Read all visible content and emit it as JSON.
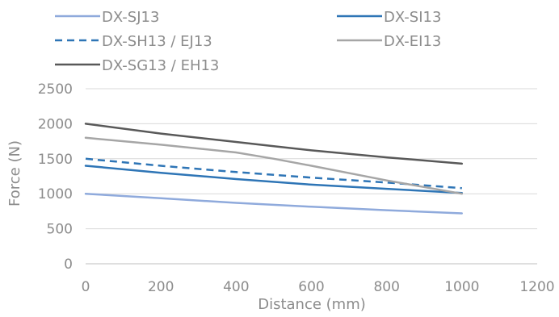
{
  "chart_data": {
    "type": "line",
    "title": "",
    "xlabel": "Distance (mm)",
    "ylabel": "Force (N)",
    "xlim": [
      0,
      1200
    ],
    "ylim": [
      0,
      2500
    ],
    "x_ticks": [
      0,
      200,
      400,
      600,
      800,
      1000,
      1200
    ],
    "y_ticks": [
      0,
      500,
      1000,
      1500,
      2000,
      2500
    ],
    "grid": "horizontal",
    "legend_position": "top",
    "series": [
      {
        "name": "DX-SJ13",
        "color": "#8faadc",
        "dashed": false,
        "x": [
          0,
          200,
          400,
          600,
          800,
          1000
        ],
        "y": [
          1000,
          935,
          870,
          815,
          765,
          720
        ]
      },
      {
        "name": "DX-SI13",
        "color": "#2e75b6",
        "dashed": false,
        "x": [
          0,
          200,
          400,
          600,
          800,
          1000
        ],
        "y": [
          1400,
          1300,
          1210,
          1130,
          1070,
          1010
        ]
      },
      {
        "name": "DX-SH13 / EJ13",
        "color": "#2e75b6",
        "dashed": true,
        "x": [
          0,
          200,
          400,
          600,
          800,
          1000
        ],
        "y": [
          1500,
          1400,
          1310,
          1230,
          1160,
          1080
        ]
      },
      {
        "name": "DX-EI13",
        "color": "#a6a6a6",
        "dashed": false,
        "x": [
          0,
          200,
          400,
          500,
          600,
          800,
          1000
        ],
        "y": [
          1800,
          1700,
          1590,
          1500,
          1400,
          1190,
          1000
        ]
      },
      {
        "name": "DX-SG13 / EH13",
        "color": "#595959",
        "dashed": false,
        "x": [
          0,
          200,
          400,
          500,
          600,
          800,
          1000
        ],
        "y": [
          2000,
          1860,
          1740,
          1680,
          1620,
          1520,
          1430
        ]
      }
    ]
  }
}
